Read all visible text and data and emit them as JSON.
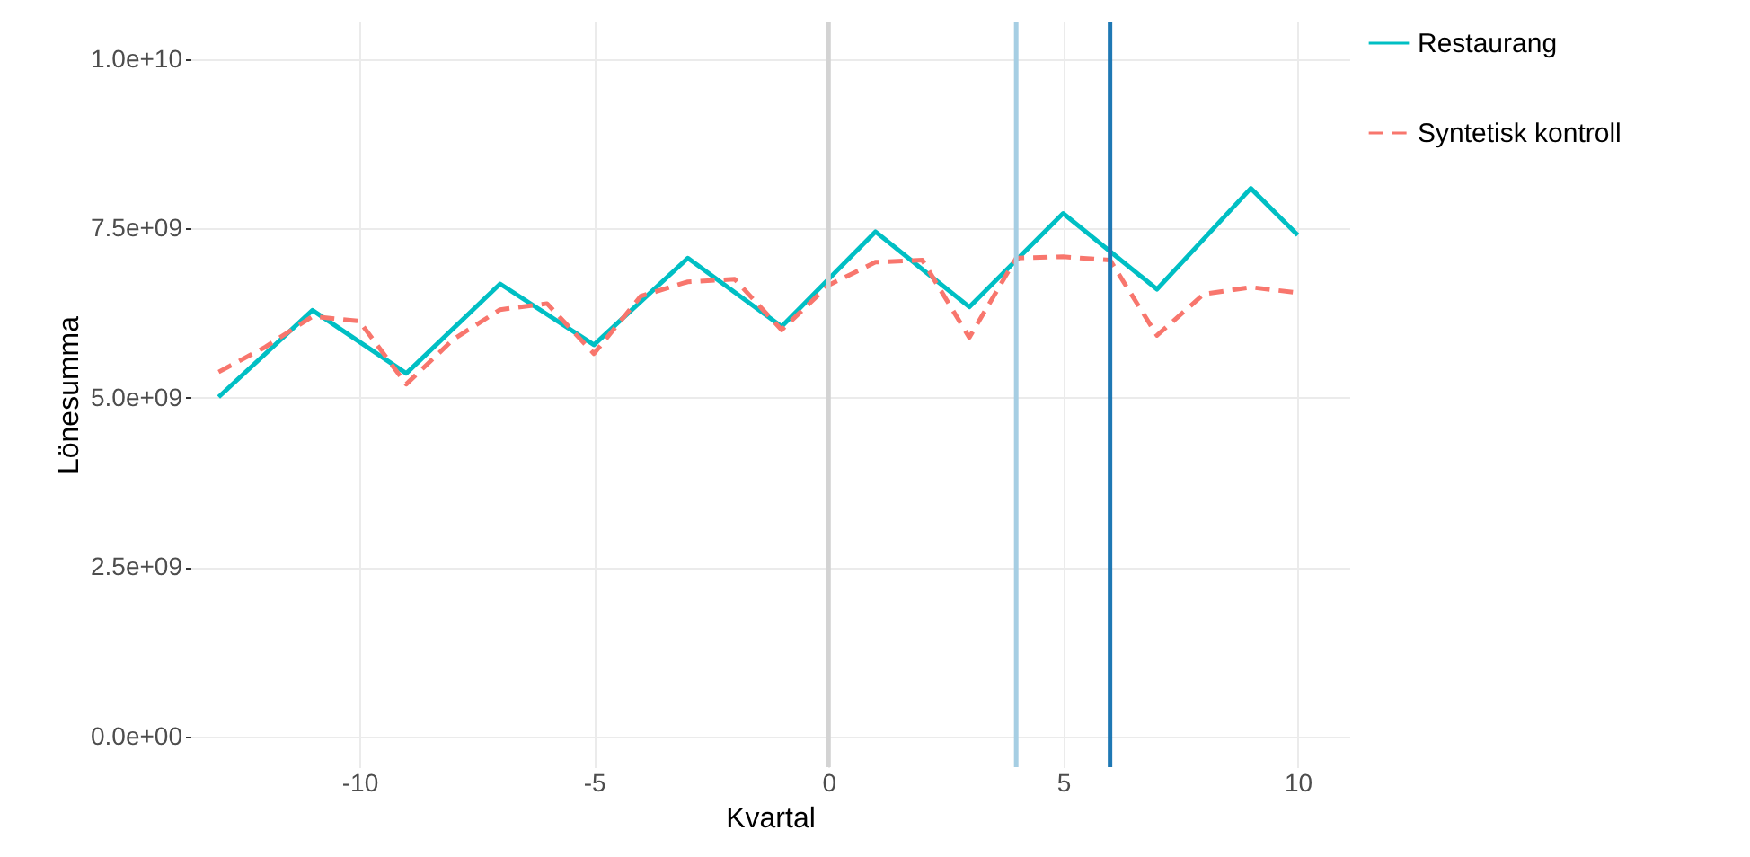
{
  "chart_data": {
    "type": "line",
    "xlabel": "Kvartal",
    "ylabel": "Lönesumma",
    "xlim": [
      -13.6,
      11.1
    ],
    "xticks": [
      -10,
      -5,
      0,
      5,
      10
    ],
    "ylim": [
      -450000000,
      10550000000
    ],
    "yticks": [
      {
        "value": 0,
        "label": "0.0e+00"
      },
      {
        "value": 2500000000,
        "label": "2.5e+09"
      },
      {
        "value": 5000000000,
        "label": "5.0e+09"
      },
      {
        "value": 7500000000,
        "label": "7.5e+09"
      },
      {
        "value": 10000000000,
        "label": "1.0e+10"
      }
    ],
    "grid": true,
    "legend": "right",
    "series": [
      {
        "name": "Restaurang",
        "color": "#00bfc4",
        "line_style": "solid",
        "x": [
          -13,
          -11,
          -9,
          -7,
          -5,
          -3,
          -1,
          1,
          3,
          5,
          7,
          9,
          10
        ],
        "values": [
          5010000000.0,
          6290000000.0,
          5360000000.0,
          6680000000.0,
          5780000000.0,
          7060000000.0,
          6050000000.0,
          7450000000.0,
          6340000000.0,
          7720000000.0,
          6600000000.0,
          8090000000.0,
          7400000000.0
        ]
      },
      {
        "name": "Syntetisk kontroll",
        "color": "#f8766d",
        "line_style": "dashed",
        "x": [
          -13,
          -12,
          -11,
          -10,
          -9,
          -8,
          -7,
          -6,
          -5,
          -4,
          -3,
          -2,
          -1,
          0,
          1,
          2,
          3,
          4,
          5,
          6,
          7,
          8,
          9,
          10
        ],
        "values": [
          5380000000.0,
          5750000000.0,
          6200000000.0,
          6130000000.0,
          5200000000.0,
          5860000000.0,
          6300000000.0,
          6390000000.0,
          5650000000.0,
          6500000000.0,
          6710000000.0,
          6750000000.0,
          6000000000.0,
          6660000000.0,
          7000000000.0,
          7030000000.0,
          5890000000.0,
          7060000000.0,
          7080000000.0,
          7030000000.0,
          5920000000.0,
          6530000000.0,
          6630000000.0,
          6550000000.0
        ]
      }
    ],
    "ref_lines": [
      {
        "axis": "x",
        "value": 0,
        "color": "#d3d3d3"
      },
      {
        "axis": "x",
        "value": 4,
        "color": "#a6cee3"
      },
      {
        "axis": "x",
        "value": 6,
        "color": "#1f78b4"
      }
    ]
  }
}
